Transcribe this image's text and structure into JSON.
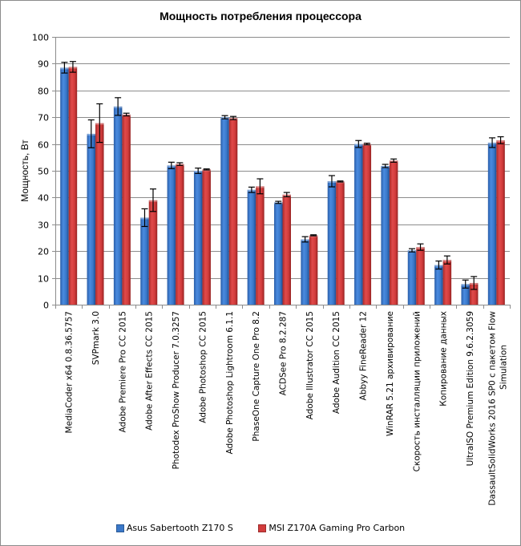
{
  "chart_data": {
    "type": "bar",
    "title": "Мощность потребления процессора",
    "xlabel": "",
    "ylabel": "Мощность, Вт",
    "ylim": [
      0,
      100
    ],
    "yticks": [
      0,
      10,
      20,
      30,
      40,
      50,
      60,
      70,
      80,
      90,
      100
    ],
    "grid": true,
    "legend_position": "bottom",
    "categories": [
      "MediaCoder x64 0.8.36.5757",
      "SVPmark 3.0",
      "Adobe Premiere Pro CC 2015",
      "Adobe After Effects CC 2015",
      "Photodex ProShow Producer 7.0.3257",
      "Adobe Photoshop CC 2015",
      "Adobe Photoshop Lightroom 6.1.1",
      "PhaseOne Capture One Pro 8.2",
      "ACDSee Pro 8.2.287",
      "Adobe Illustrator CC 2015",
      "Adobe Audition CC 2015",
      "Abbyy FineReader 12",
      "WinRAR 5.21 архивирование",
      "Скорость инсталляции приложений",
      "Копирование данных",
      "UltraISO Premium Edition 9.6.2.3059",
      "DassaultSolidWorks 2016 SP0 с пакетом Flow Simulation"
    ],
    "series": [
      {
        "name": "Asus Sabertooth Z170 S",
        "color": "#3a78c9",
        "values": [
          88.5,
          63.8,
          74.0,
          32.5,
          52.0,
          50.0,
          70.0,
          42.9,
          38.2,
          24.4,
          46.1,
          60.0,
          51.8,
          20.3,
          14.8,
          7.7,
          60.5
        ],
        "errors": [
          2.0,
          5.2,
          3.3,
          3.3,
          1.2,
          1.0,
          0.6,
          1.0,
          0.4,
          1.0,
          2.1,
          1.3,
          0.6,
          0.6,
          1.5,
          1.5,
          1.8
        ]
      },
      {
        "name": "MSI Z170A Gaming Pro Carbon",
        "color": "#d23c3c",
        "values": [
          88.8,
          67.8,
          71.0,
          39.0,
          52.5,
          50.5,
          69.7,
          44.2,
          41.1,
          25.9,
          46.0,
          60.0,
          53.8,
          21.5,
          16.7,
          8.1,
          61.4
        ],
        "errors": [
          2.0,
          7.2,
          0.5,
          4.2,
          0.5,
          0.2,
          0.6,
          2.8,
          0.8,
          0.2,
          0.2,
          0.3,
          0.6,
          1.2,
          1.5,
          2.4,
          1.3
        ]
      }
    ]
  }
}
